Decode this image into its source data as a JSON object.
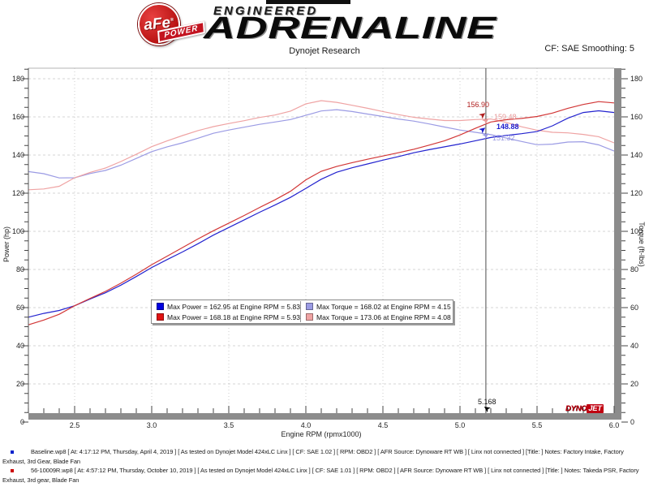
{
  "header": {
    "brand": {
      "afe": "aFe",
      "reg": "®",
      "power": "POWER",
      "engineered": "ENGINEERED",
      "adrenaline": "ADRENALINE"
    },
    "subtitle": "Dynojet Research",
    "smoothing": "CF: SAE Smoothing: 5"
  },
  "chart_data": {
    "type": "line",
    "xlabel": "Engine RPM (rpmx1000)",
    "ylabel_left": "Power (hp)",
    "ylabel_right": "Torque (ft-lbs)",
    "xlim": [
      2.2,
      6.0
    ],
    "ylim": [
      0,
      185
    ],
    "grid": true,
    "x_ticks": [
      {
        "v": 2.5,
        "label": "2.5"
      },
      {
        "v": 3.0,
        "label": "3.0"
      },
      {
        "v": 3.5,
        "label": "3.5"
      },
      {
        "v": 4.0,
        "label": "4.0"
      },
      {
        "v": 4.5,
        "label": "4.5"
      },
      {
        "v": 5.0,
        "label": "5.0"
      },
      {
        "v": 5.5,
        "label": "5.5"
      },
      {
        "v": 6.0,
        "label": "6.0"
      }
    ],
    "y_ticks": [
      {
        "v": 0,
        "label": "0"
      },
      {
        "v": 20,
        "label": "20"
      },
      {
        "v": 40,
        "label": "40"
      },
      {
        "v": 60,
        "label": "60"
      },
      {
        "v": 80,
        "label": "80"
      },
      {
        "v": 100,
        "label": "100"
      },
      {
        "v": 120,
        "label": "120"
      },
      {
        "v": 140,
        "label": "140"
      },
      {
        "v": 160,
        "label": "160"
      },
      {
        "v": 180,
        "label": "180"
      }
    ],
    "series": [
      {
        "name": "Baseline Torque",
        "unit": "ft-lbs",
        "color": "#9b9be4",
        "points": [
          [
            2.2,
            131.3
          ],
          [
            2.3,
            130.2
          ],
          [
            2.4,
            128.0
          ],
          [
            2.5,
            128.1
          ],
          [
            2.6,
            130.3
          ],
          [
            2.7,
            131.9
          ],
          [
            2.8,
            134.7
          ],
          [
            2.9,
            138.2
          ],
          [
            3.0,
            141.8
          ],
          [
            3.1,
            144.3
          ],
          [
            3.2,
            146.4
          ],
          [
            3.3,
            148.8
          ],
          [
            3.4,
            151.4
          ],
          [
            3.5,
            153.1
          ],
          [
            3.6,
            154.6
          ],
          [
            3.7,
            156.1
          ],
          [
            3.8,
            157.3
          ],
          [
            3.9,
            158.6
          ],
          [
            4.0,
            160.8
          ],
          [
            4.1,
            163.1
          ],
          [
            4.2,
            163.8
          ],
          [
            4.3,
            162.8
          ],
          [
            4.4,
            161.5
          ],
          [
            4.5,
            160.2
          ],
          [
            4.6,
            158.9
          ],
          [
            4.7,
            157.8
          ],
          [
            4.8,
            156.3
          ],
          [
            4.9,
            154.7
          ],
          [
            5.0,
            153.1
          ],
          [
            5.1,
            151.9
          ],
          [
            5.2,
            150.7
          ],
          [
            5.3,
            148.9
          ],
          [
            5.4,
            147.1
          ],
          [
            5.5,
            145.4
          ],
          [
            5.6,
            145.7
          ],
          [
            5.7,
            146.8
          ],
          [
            5.8,
            147.0
          ],
          [
            5.9,
            145.3
          ],
          [
            6.0,
            142.1
          ]
        ]
      },
      {
        "name": "56-10009R Torque",
        "unit": "ft-lbs",
        "color": "#efa3a3",
        "points": [
          [
            2.2,
            121.8
          ],
          [
            2.3,
            122.2
          ],
          [
            2.4,
            123.6
          ],
          [
            2.5,
            128.1
          ],
          [
            2.6,
            130.9
          ],
          [
            2.7,
            133.2
          ],
          [
            2.8,
            136.6
          ],
          [
            2.9,
            140.4
          ],
          [
            3.0,
            144.4
          ],
          [
            3.1,
            147.4
          ],
          [
            3.2,
            150.2
          ],
          [
            3.3,
            152.8
          ],
          [
            3.4,
            154.9
          ],
          [
            3.5,
            156.5
          ],
          [
            3.6,
            158.0
          ],
          [
            3.7,
            159.7
          ],
          [
            3.8,
            161.0
          ],
          [
            3.9,
            163.0
          ],
          [
            4.0,
            166.8
          ],
          [
            4.1,
            168.5
          ],
          [
            4.2,
            167.6
          ],
          [
            4.3,
            166.1
          ],
          [
            4.4,
            164.5
          ],
          [
            4.5,
            162.8
          ],
          [
            4.6,
            161.2
          ],
          [
            4.7,
            159.8
          ],
          [
            4.8,
            158.9
          ],
          [
            4.9,
            158.1
          ],
          [
            5.0,
            158.1
          ],
          [
            5.1,
            158.6
          ],
          [
            5.2,
            158.9
          ],
          [
            5.3,
            157.1
          ],
          [
            5.4,
            154.8
          ],
          [
            5.5,
            153.0
          ],
          [
            5.6,
            151.9
          ],
          [
            5.7,
            151.6
          ],
          [
            5.8,
            150.8
          ],
          [
            5.9,
            149.6
          ],
          [
            6.0,
            146.4
          ]
        ]
      },
      {
        "name": "Baseline Power",
        "unit": "hp",
        "color": "#2323cf",
        "points": [
          [
            2.2,
            55.0
          ],
          [
            2.3,
            57.0
          ],
          [
            2.4,
            58.5
          ],
          [
            2.5,
            61.0
          ],
          [
            2.6,
            64.5
          ],
          [
            2.7,
            67.8
          ],
          [
            2.8,
            71.8
          ],
          [
            2.9,
            76.3
          ],
          [
            3.0,
            81.0
          ],
          [
            3.1,
            85.2
          ],
          [
            3.2,
            89.2
          ],
          [
            3.3,
            93.5
          ],
          [
            3.4,
            98.0
          ],
          [
            3.5,
            102.0
          ],
          [
            3.6,
            106.0
          ],
          [
            3.7,
            110.0
          ],
          [
            3.8,
            113.8
          ],
          [
            3.9,
            117.8
          ],
          [
            4.0,
            122.5
          ],
          [
            4.1,
            127.3
          ],
          [
            4.2,
            131.0
          ],
          [
            4.3,
            133.3
          ],
          [
            4.4,
            135.3
          ],
          [
            4.5,
            137.3
          ],
          [
            4.6,
            139.2
          ],
          [
            4.7,
            141.2
          ],
          [
            4.8,
            142.8
          ],
          [
            4.9,
            144.3
          ],
          [
            5.0,
            145.8
          ],
          [
            5.1,
            147.5
          ],
          [
            5.2,
            149.2
          ],
          [
            5.3,
            150.3
          ],
          [
            5.4,
            151.2
          ],
          [
            5.5,
            152.3
          ],
          [
            5.6,
            155.3
          ],
          [
            5.7,
            159.3
          ],
          [
            5.8,
            162.3
          ],
          [
            5.9,
            163.2
          ],
          [
            6.0,
            162.3
          ]
        ]
      },
      {
        "name": "56-10009R Power",
        "unit": "hp",
        "color": "#d23737",
        "points": [
          [
            2.2,
            51.0
          ],
          [
            2.3,
            53.5
          ],
          [
            2.4,
            56.5
          ],
          [
            2.5,
            61.0
          ],
          [
            2.6,
            64.8
          ],
          [
            2.7,
            68.5
          ],
          [
            2.8,
            72.8
          ],
          [
            2.9,
            77.5
          ],
          [
            3.0,
            82.5
          ],
          [
            3.1,
            87.0
          ],
          [
            3.2,
            91.5
          ],
          [
            3.3,
            96.0
          ],
          [
            3.4,
            100.3
          ],
          [
            3.5,
            104.3
          ],
          [
            3.6,
            108.3
          ],
          [
            3.7,
            112.5
          ],
          [
            3.8,
            116.5
          ],
          [
            3.9,
            121.0
          ],
          [
            4.0,
            127.0
          ],
          [
            4.1,
            131.5
          ],
          [
            4.2,
            134.0
          ],
          [
            4.3,
            136.0
          ],
          [
            4.4,
            137.8
          ],
          [
            4.5,
            139.5
          ],
          [
            4.6,
            141.2
          ],
          [
            4.7,
            143.0
          ],
          [
            4.8,
            145.2
          ],
          [
            4.9,
            147.5
          ],
          [
            5.0,
            150.5
          ],
          [
            5.1,
            154.0
          ],
          [
            5.2,
            157.3
          ],
          [
            5.3,
            158.5
          ],
          [
            5.4,
            159.2
          ],
          [
            5.5,
            160.2
          ],
          [
            5.6,
            162.0
          ],
          [
            5.7,
            164.5
          ],
          [
            5.8,
            166.5
          ],
          [
            5.9,
            168.0
          ],
          [
            6.0,
            167.3
          ]
        ]
      }
    ],
    "legend": [
      {
        "swatch": "#0000e0",
        "text": "Max Power = 162.95 at Engine RPM = 5.83"
      },
      {
        "swatch": "#9b9be4",
        "text": "Max Torque = 168.02 at Engine RPM = 4.15"
      },
      {
        "swatch": "#e01212",
        "text": "Max Power = 168.18 at Engine RPM = 5.93"
      },
      {
        "swatch": "#efa3a3",
        "text": "Max Torque = 173.06 at Engine RPM = 4.08"
      }
    ],
    "cursor": {
      "x": 5.168,
      "x_label": "5.168",
      "readouts": [
        {
          "text": "156.90",
          "series": "56-10009R Power",
          "color": "#b02020"
        },
        {
          "text": "159.48",
          "series": "56-10009R Torque",
          "color": "#e89898"
        },
        {
          "text": "148.88",
          "series": "Baseline Power",
          "color": "#1a1acd"
        },
        {
          "text": "151.32",
          "series": "Baseline Torque",
          "color": "#9898e0"
        }
      ]
    },
    "watermark": {
      "dyno": "DYNO",
      "jet": "JET"
    }
  },
  "footer": {
    "runs": [
      {
        "bullet_color": "#0022cc",
        "text": "Baseline.wp8 [ At: 4:17:12 PM, Thursday, April 4, 2019 ] [ As tested on Dynojet Model 424xLC Linx ] [ CF: SAE 1.02 ] [ RPM: OBD2 ] [ AFR Source: Dynoware RT WB ] [ Linx not connected ] [Title: ]  Notes: Factory Intake, Factory Exhaust, 3rd Gear, Blade Fan"
      },
      {
        "bullet_color": "#cc0000",
        "text": "56-10009R.wp8 [ At: 4:57:12 PM, Thursday, October 10, 2019 ] [ As tested on Dynojet Model 424xLC Linx ] [ CF: SAE 1.01 ] [ RPM: OBD2 ] [ AFR Source: Dynoware RT WB ] [ Linx not connected ] [Title: ]  Notes: Takeda PSR, Factory Exhaust, 3rd gear, Blade Fan"
      }
    ]
  }
}
